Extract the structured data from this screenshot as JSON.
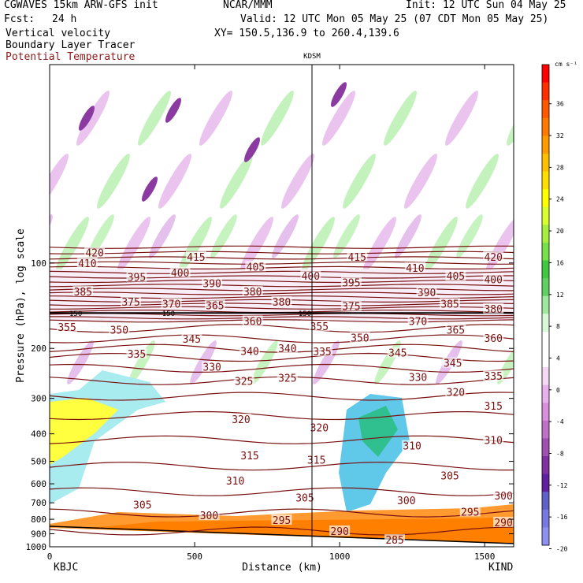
{
  "header": {
    "model": "CGWAVES 15km ARW-GFS init",
    "org": "NCAR/MMM",
    "init": "Init: 12 UTC Sun 04 May 25",
    "fcst_label": "Fcst:",
    "fcst_value": "24 h",
    "valid": "Valid: 12 UTC Mon 05 May 25 (07 CDT Mon 05 May 25)",
    "field1": "Vertical velocity",
    "field2": "Boundary Layer Tracer",
    "field3": "Potential Temperature",
    "xy": "XY= 150.5,136.9 to 260.4,139.6",
    "station_mid": "KDSM",
    "station_left": "KBJC",
    "station_right": "KIND"
  },
  "colors": {
    "theta": "#7a1010",
    "field3_text": "#8b1a1a"
  },
  "chart_data": {
    "type": "heatmap",
    "xlabel": "Distance (km)",
    "ylabel": "Pressure (hPa), log scale",
    "x_ticks": [
      0,
      500,
      1000,
      1500
    ],
    "y_ticks": [
      100,
      200,
      300,
      400,
      500,
      600,
      700,
      800,
      900,
      1000
    ],
    "xlim": [
      0,
      1600
    ],
    "ylim": [
      1000,
      20
    ],
    "y_scale": "log",
    "station_marker_km": 940,
    "colorbar": {
      "unit": "cm s⁻¹",
      "ticks": [
        36,
        32,
        28,
        24,
        20,
        16,
        12,
        8,
        4,
        0,
        -4,
        -8,
        -12,
        -16,
        -20
      ],
      "colors": [
        "#ff0000",
        "#ff3000",
        "#ff5a00",
        "#ff7a00",
        "#ff9a00",
        "#ffbe00",
        "#ffde00",
        "#ffff00",
        "#d8ff30",
        "#a8f040",
        "#78e048",
        "#40c840",
        "#60d060",
        "#a0e8a0",
        "#d8f8d8",
        "#ffffff",
        "#ffffff",
        "#f4d8f4",
        "#e8b0ec",
        "#d890dc",
        "#c070c8",
        "#a050b0",
        "#8030a0",
        "#6020a0",
        "#6060c8",
        "#7878e0",
        "#9090f0"
      ]
    },
    "theta_labels": [
      {
        "v": "420",
        "x": 155,
        "p": 92
      },
      {
        "v": "415",
        "x": 505,
        "p": 95
      },
      {
        "v": "415",
        "x": 1060,
        "p": 95
      },
      {
        "v": "420",
        "x": 1530,
        "p": 95
      },
      {
        "v": "410",
        "x": 130,
        "p": 100
      },
      {
        "v": "405",
        "x": 710,
        "p": 103
      },
      {
        "v": "410",
        "x": 1260,
        "p": 104
      },
      {
        "v": "395",
        "x": 300,
        "p": 112
      },
      {
        "v": "400",
        "x": 450,
        "p": 108
      },
      {
        "v": "400",
        "x": 900,
        "p": 111
      },
      {
        "v": "405",
        "x": 1400,
        "p": 111
      },
      {
        "v": "400",
        "x": 1530,
        "p": 114
      },
      {
        "v": "390",
        "x": 560,
        "p": 118
      },
      {
        "v": "395",
        "x": 1040,
        "p": 117
      },
      {
        "v": "385",
        "x": 115,
        "p": 126
      },
      {
        "v": "380",
        "x": 700,
        "p": 126
      },
      {
        "v": "390",
        "x": 1300,
        "p": 127
      },
      {
        "v": "375",
        "x": 280,
        "p": 137
      },
      {
        "v": "370",
        "x": 420,
        "p": 139
      },
      {
        "v": "365",
        "x": 570,
        "p": 141
      },
      {
        "v": "380",
        "x": 800,
        "p": 137
      },
      {
        "v": "375",
        "x": 1040,
        "p": 142
      },
      {
        "v": "385",
        "x": 1380,
        "p": 139
      },
      {
        "v": "360",
        "x": 700,
        "p": 160
      },
      {
        "v": "370",
        "x": 1270,
        "p": 160
      },
      {
        "v": "380",
        "x": 1530,
        "p": 145
      },
      {
        "v": "355",
        "x": 60,
        "p": 168
      },
      {
        "v": "350",
        "x": 240,
        "p": 172
      },
      {
        "v": "355",
        "x": 930,
        "p": 167
      },
      {
        "v": "365",
        "x": 1400,
        "p": 172
      },
      {
        "v": "345",
        "x": 490,
        "p": 185
      },
      {
        "v": "350",
        "x": 1070,
        "p": 183
      },
      {
        "v": "360",
        "x": 1530,
        "p": 184
      },
      {
        "v": "340",
        "x": 690,
        "p": 204
      },
      {
        "v": "340",
        "x": 820,
        "p": 200
      },
      {
        "v": "335",
        "x": 940,
        "p": 205
      },
      {
        "v": "345",
        "x": 1200,
        "p": 207
      },
      {
        "v": "335",
        "x": 300,
        "p": 209
      },
      {
        "v": "345",
        "x": 1390,
        "p": 225
      },
      {
        "v": "330",
        "x": 560,
        "p": 232
      },
      {
        "v": "330",
        "x": 1270,
        "p": 252
      },
      {
        "v": "335",
        "x": 1530,
        "p": 250
      },
      {
        "v": "325",
        "x": 670,
        "p": 260
      },
      {
        "v": "325",
        "x": 820,
        "p": 254
      },
      {
        "v": "320",
        "x": 1400,
        "p": 285
      },
      {
        "v": "320",
        "x": 660,
        "p": 355
      },
      {
        "v": "320",
        "x": 930,
        "p": 380
      },
      {
        "v": "315",
        "x": 1530,
        "p": 318
      },
      {
        "v": "315",
        "x": 690,
        "p": 477
      },
      {
        "v": "315",
        "x": 920,
        "p": 493
      },
      {
        "v": "310",
        "x": 1250,
        "p": 440
      },
      {
        "v": "310",
        "x": 1530,
        "p": 420
      },
      {
        "v": "310",
        "x": 640,
        "p": 585
      },
      {
        "v": "305",
        "x": 1380,
        "p": 560
      },
      {
        "v": "305",
        "x": 320,
        "p": 710
      },
      {
        "v": "305",
        "x": 880,
        "p": 670
      },
      {
        "v": "300",
        "x": 1230,
        "p": 685
      },
      {
        "v": "300",
        "x": 1565,
        "p": 660
      },
      {
        "v": "300",
        "x": 550,
        "p": 775
      },
      {
        "v": "295",
        "x": 800,
        "p": 805
      },
      {
        "v": "295",
        "x": 1450,
        "p": 752
      },
      {
        "v": "290",
        "x": 1565,
        "p": 820
      },
      {
        "v": "290",
        "x": 1000,
        "p": 880
      },
      {
        "v": "285",
        "x": 1190,
        "p": 945
      }
    ],
    "small_labels": [
      {
        "v": "150",
        "x": 90,
        "p": 150
      },
      {
        "v": "150",
        "x": 410,
        "p": 150
      },
      {
        "v": "150",
        "x": 880,
        "p": 150
      }
    ]
  }
}
